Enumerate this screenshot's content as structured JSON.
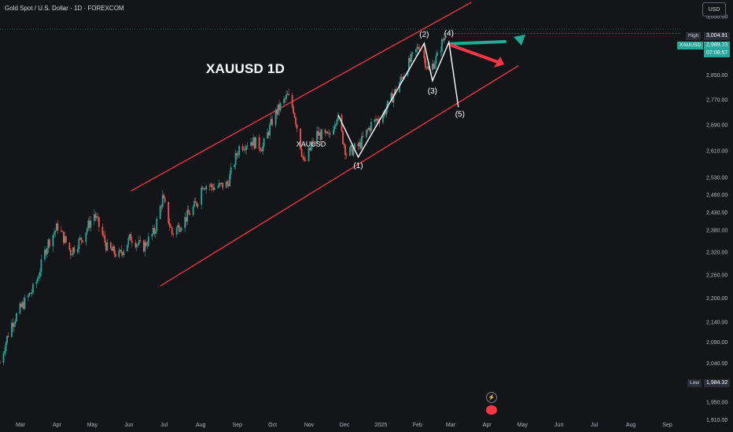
{
  "header": {
    "title": "Gold Spot / U.S. Dollar · 1D · FOREXCOM",
    "currency": "USD"
  },
  "overlay": {
    "title": "XAUUSD 1D",
    "watermark": "XAUUSD",
    "wave_labels": [
      "(1)",
      "(2)",
      "(3)",
      "(4)",
      "(5)"
    ]
  },
  "price_scale": {
    "ticks": [
      "3,050.00",
      "2,850.00",
      "2,770.00",
      "2,690.00",
      "2,610.00",
      "2,530.00",
      "2,480.00",
      "2,430.00",
      "2,380.00",
      "2,320.00",
      "2,260.00",
      "2,200.00",
      "2,140.00",
      "2,090.00",
      "2,040.00",
      "1,950.00",
      "1,910.00"
    ],
    "high_label": "High",
    "high_value": "3,004.91",
    "symbol_label": "XAUUSD",
    "last_price": "2,989.73",
    "countdown": "07:08:57",
    "low_label": "Low",
    "low_value": "1,984.32"
  },
  "time_scale": {
    "ticks": [
      "Mar",
      "Apr",
      "May",
      "Jun",
      "Jul",
      "Aug",
      "Sep",
      "Oct",
      "Nov",
      "Dec",
      "2025",
      "Feb",
      "Mar",
      "Apr",
      "May",
      "Jun",
      "Jul",
      "Aug",
      "Sep"
    ]
  },
  "colors": {
    "up": "#26a69a",
    "down": "#ef5350",
    "channel": "#f23645",
    "wave": "#ffffff",
    "bull_arrow": "#22ab94",
    "bear_arrow": "#f23645",
    "last_price_bg": "#26a69a",
    "high_low_bg": "#2a2e39"
  },
  "chart_data": {
    "type": "candlestick",
    "title": "Gold Spot / U.S. Dollar · 1D · FOREXCOM",
    "x_range": [
      "2024-03-01",
      "2025-09-30"
    ],
    "ylim": [
      1910,
      3080
    ],
    "y_scale": "log",
    "grid": false,
    "close_path": [
      [
        "2024-03-01",
        2040
      ],
      [
        "2024-03-10",
        2130
      ],
      [
        "2024-03-20",
        2180
      ],
      [
        "2024-03-31",
        2230
      ],
      [
        "2024-04-10",
        2340
      ],
      [
        "2024-04-19",
        2390
      ],
      [
        "2024-04-30",
        2320
      ],
      [
        "2024-05-10",
        2360
      ],
      [
        "2024-05-20",
        2425
      ],
      [
        "2024-05-31",
        2330
      ],
      [
        "2024-06-10",
        2310
      ],
      [
        "2024-06-20",
        2360
      ],
      [
        "2024-06-30",
        2330
      ],
      [
        "2024-07-10",
        2375
      ],
      [
        "2024-07-17",
        2470
      ],
      [
        "2024-07-25",
        2370
      ],
      [
        "2024-08-05",
        2410
      ],
      [
        "2024-08-15",
        2455
      ],
      [
        "2024-08-20",
        2510
      ],
      [
        "2024-08-31",
        2500
      ],
      [
        "2024-09-10",
        2510
      ],
      [
        "2024-09-20",
        2620
      ],
      [
        "2024-09-30",
        2640
      ],
      [
        "2024-10-10",
        2620
      ],
      [
        "2024-10-20",
        2720
      ],
      [
        "2024-10-31",
        2780
      ],
      [
        "2024-11-05",
        2740
      ],
      [
        "2024-11-14",
        2570
      ],
      [
        "2024-11-25",
        2660
      ],
      [
        "2024-12-05",
        2650
      ],
      [
        "2024-12-12",
        2720
      ],
      [
        "2024-12-20",
        2600
      ],
      [
        "2024-12-31",
        2625
      ],
      [
        "2025-01-10",
        2690
      ],
      [
        "2025-01-20",
        2720
      ],
      [
        "2025-01-31",
        2800
      ],
      [
        "2025-02-10",
        2880
      ],
      [
        "2025-02-20",
        2950
      ],
      [
        "2025-02-28",
        2860
      ],
      [
        "2025-03-07",
        2910
      ],
      [
        "2025-03-14",
        2989.73
      ]
    ],
    "last_price": 2989.73,
    "high": 3004.91,
    "low": 1984.32,
    "annotations": [
      {
        "label": "(1)",
        "date": "2024-12-30",
        "price": 2590
      },
      {
        "label": "(2)",
        "date": "2025-02-24",
        "price": 2956
      },
      {
        "label": "(3)",
        "date": "2025-03-03",
        "price": 2830
      },
      {
        "label": "(4)",
        "date": "2025-03-17",
        "price": 2960
      },
      {
        "label": "(5)",
        "date": "2025-03-25",
        "price": 2745
      }
    ],
    "channel_upper": [
      [
        "2024-06-20",
        2490
      ],
      [
        "2025-04-05",
        3100
      ]
    ],
    "channel_lower": [
      [
        "2024-07-15",
        2230
      ],
      [
        "2025-05-15",
        2880
      ]
    ]
  }
}
